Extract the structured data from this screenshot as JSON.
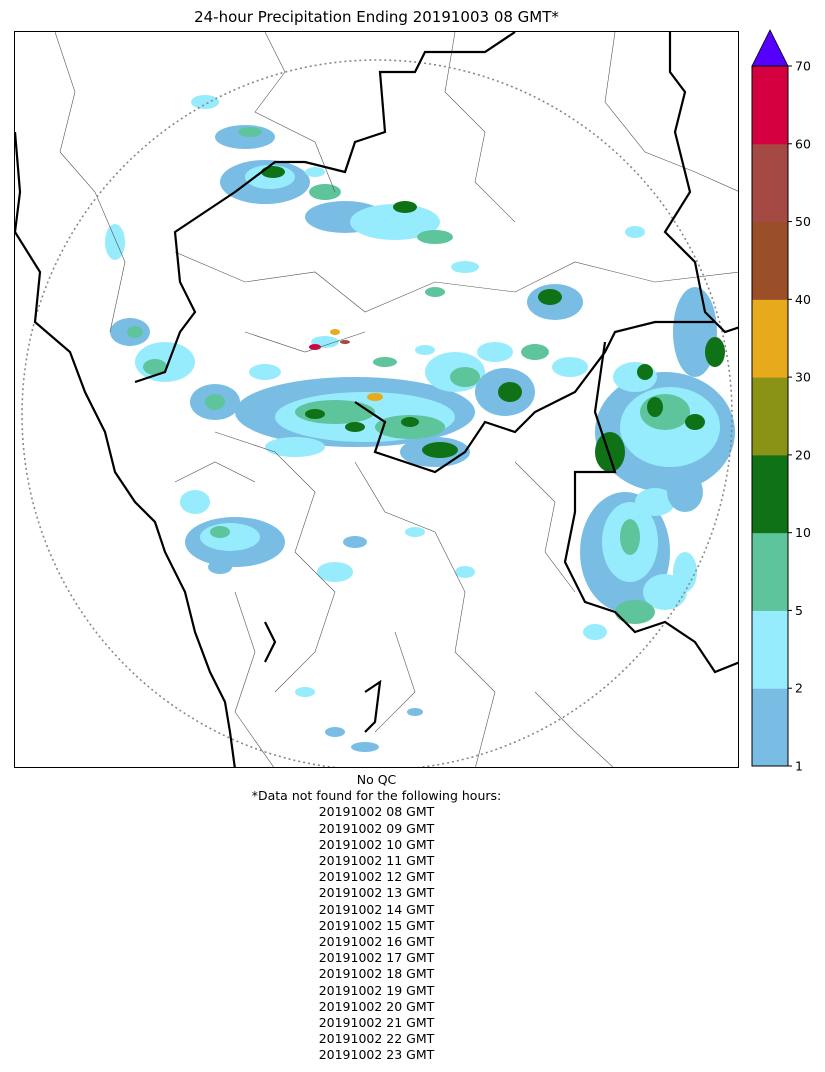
{
  "title": "24-hour Precipitation Ending 20191003 08 GMT*",
  "colorbar": {
    "ticks": [
      "1",
      "2",
      "5",
      "10",
      "20",
      "30",
      "40",
      "50",
      "60",
      "70"
    ],
    "colors": [
      "#79bde4",
      "#96ecfc",
      "#5ec49c",
      "#0f7217",
      "#8b9316",
      "#e6aa1c",
      "#9b4f28",
      "#a44943",
      "#d4003f"
    ],
    "extend_color": "#5500ff"
  },
  "qc_note": "No QC",
  "missing_header": "*Data not found for the following hours:",
  "missing_hours": [
    "20191002 08 GMT",
    "20191002 09 GMT",
    "20191002 10 GMT",
    "20191002 11 GMT",
    "20191002 12 GMT",
    "20191002 13 GMT",
    "20191002 14 GMT",
    "20191002 15 GMT",
    "20191002 16 GMT",
    "20191002 17 GMT",
    "20191002 18 GMT",
    "20191002 19 GMT",
    "20191002 20 GMT",
    "20191002 21 GMT",
    "20191002 22 GMT",
    "20191002 23 GMT"
  ]
}
